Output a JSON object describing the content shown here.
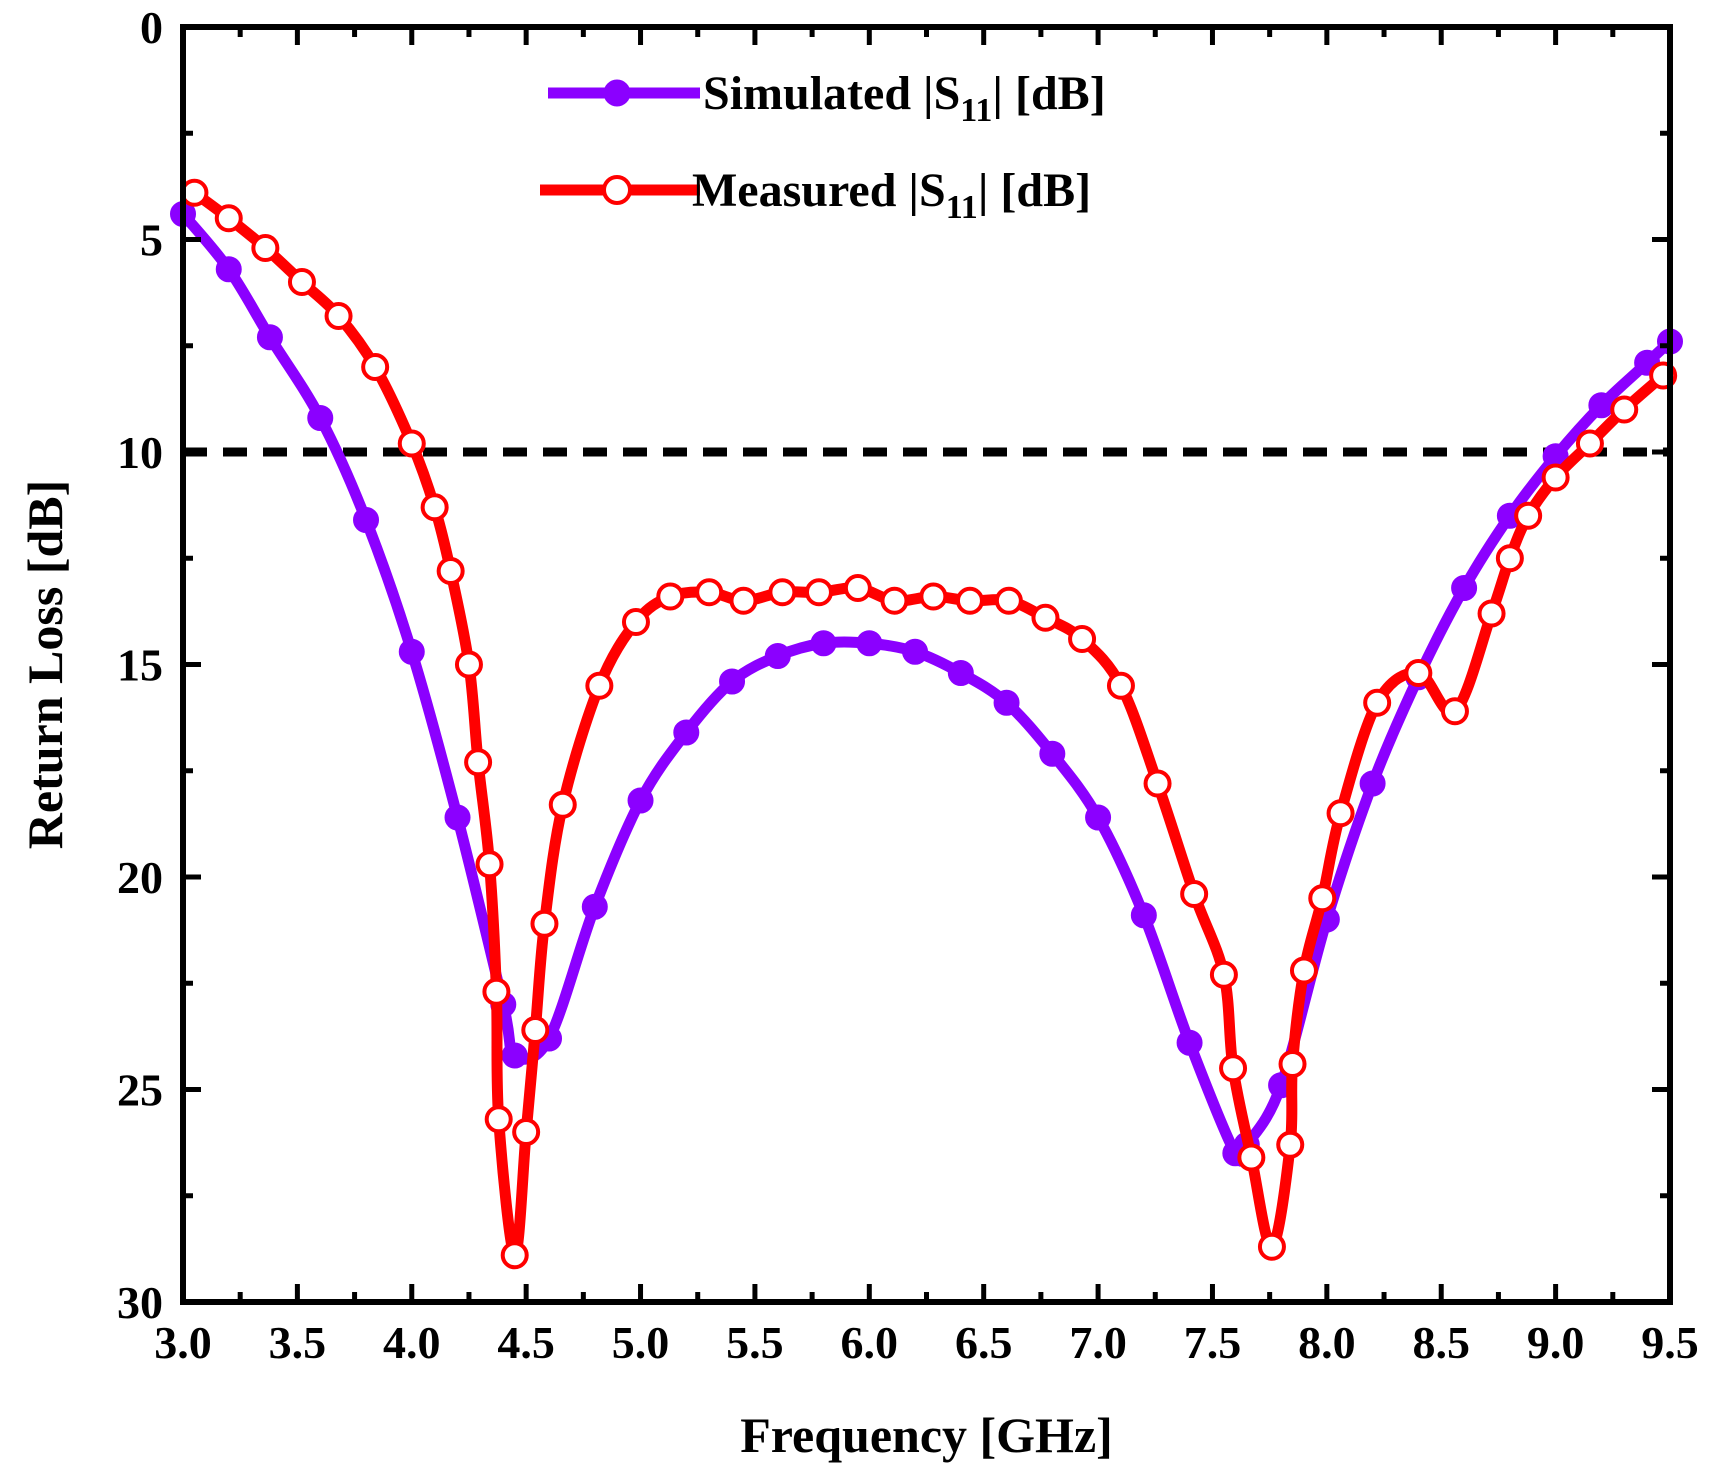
{
  "chart_data": {
    "type": "line",
    "xlabel": "Frequency [GHz]",
    "ylabel": "Return Loss [dB]",
    "xlim": [
      3.0,
      9.5
    ],
    "ylim": [
      0,
      30
    ],
    "y_inverted": true,
    "xticks": [
      3.0,
      3.5,
      4.0,
      4.5,
      5.0,
      5.5,
      6.0,
      6.5,
      7.0,
      7.5,
      8.0,
      8.5,
      9.0,
      9.5
    ],
    "xtick_labels": [
      "3.0",
      "3.5",
      "4.0",
      "4.5",
      "5.0",
      "5.5",
      "6.0",
      "6.5",
      "7.0",
      "7.5",
      "8.0",
      "8.5",
      "9.0",
      "9.5"
    ],
    "yticks": [
      0,
      5,
      10,
      15,
      20,
      25,
      30
    ],
    "ytick_labels": [
      "0",
      "5",
      "10",
      "15",
      "20",
      "25",
      "30"
    ],
    "reference_line": {
      "y": 10,
      "style": "dashed",
      "color": "#000000"
    },
    "legend_position": "top-center",
    "series": [
      {
        "name": "Simulated |S11| [dB]",
        "legend_main": "Simulated |S",
        "legend_sub": "11",
        "legend_tail": "| [dB]",
        "color": "#8b00ff",
        "marker": "filled-circle",
        "x": [
          3.0,
          3.2,
          3.38,
          3.6,
          3.8,
          4.0,
          4.2,
          4.4,
          4.45,
          4.6,
          4.8,
          5.0,
          5.2,
          5.4,
          5.6,
          5.8,
          6.0,
          6.2,
          6.4,
          6.6,
          6.8,
          7.0,
          7.2,
          7.4,
          7.6,
          7.65,
          7.8,
          8.0,
          8.2,
          8.4,
          8.6,
          8.8,
          9.0,
          9.2,
          9.4,
          9.5
        ],
        "y": [
          4.4,
          5.7,
          7.3,
          9.2,
          11.6,
          14.7,
          18.6,
          23.0,
          24.2,
          23.8,
          20.7,
          18.2,
          16.6,
          15.4,
          14.8,
          14.5,
          14.5,
          14.7,
          15.2,
          15.9,
          17.1,
          18.6,
          20.9,
          23.9,
          26.5,
          26.3,
          24.9,
          21.0,
          17.8,
          15.3,
          13.2,
          11.5,
          10.1,
          8.9,
          7.9,
          7.4
        ]
      },
      {
        "name": "Measured |S11| [dB]",
        "legend_main": "Measured |S",
        "legend_sub": "11",
        "legend_tail": "| [dB]",
        "color": "#ff0000",
        "marker": "open-circle",
        "x": [
          3.05,
          3.2,
          3.36,
          3.52,
          3.68,
          3.84,
          4.0,
          4.1,
          4.17,
          4.25,
          4.29,
          4.34,
          4.37,
          4.38,
          4.45,
          4.5,
          4.54,
          4.58,
          4.66,
          4.82,
          4.98,
          5.13,
          5.3,
          5.45,
          5.62,
          5.78,
          5.95,
          6.11,
          6.28,
          6.44,
          6.61,
          6.77,
          6.93,
          7.1,
          7.26,
          7.42,
          7.55,
          7.59,
          7.67,
          7.76,
          7.84,
          7.85,
          7.9,
          7.98,
          8.06,
          8.22,
          8.4,
          8.56,
          8.72,
          8.8,
          8.88,
          9.0,
          9.15,
          9.3,
          9.47
        ],
        "y": [
          3.9,
          4.5,
          5.2,
          6.0,
          6.8,
          8.0,
          9.8,
          11.3,
          12.8,
          15.0,
          17.3,
          19.7,
          22.7,
          25.7,
          28.9,
          26.0,
          23.6,
          21.1,
          18.3,
          15.5,
          14.0,
          13.4,
          13.3,
          13.5,
          13.3,
          13.3,
          13.2,
          13.5,
          13.4,
          13.5,
          13.5,
          13.9,
          14.4,
          15.5,
          17.8,
          20.4,
          22.3,
          24.5,
          26.6,
          28.7,
          26.3,
          24.4,
          22.2,
          20.5,
          18.5,
          15.9,
          15.2,
          16.1,
          13.8,
          12.5,
          11.5,
          10.6,
          9.8,
          9.0,
          8.2
        ]
      }
    ]
  }
}
